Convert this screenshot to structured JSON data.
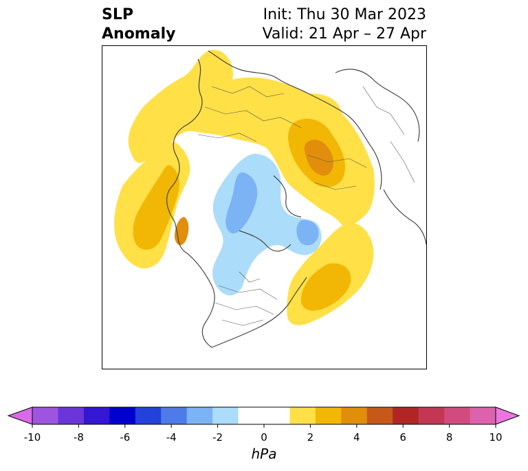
{
  "title": {
    "line1": "SLP",
    "line2": "Anomaly",
    "init": "Init: Thu 30 Mar 2023",
    "valid": "Valid: 21 Apr – 27 Apr"
  },
  "map": {
    "projection": "north-polar-stereographic",
    "field": "sea level pressure anomaly",
    "regions": [
      {
        "name": "north-atlantic-europe-high",
        "level": 2,
        "sign": "positive"
      },
      {
        "name": "scandinavia-russia-high-core",
        "level": 3,
        "sign": "positive"
      },
      {
        "name": "north-pacific-high",
        "level": 2,
        "sign": "positive"
      },
      {
        "name": "north-pacific-high-core",
        "level": 3,
        "sign": "positive"
      },
      {
        "name": "western-atlantic-high",
        "level": 2,
        "sign": "positive"
      },
      {
        "name": "arctic-low",
        "level": -2,
        "sign": "negative"
      },
      {
        "name": "baffin-low",
        "level": -2,
        "sign": "negative"
      }
    ]
  },
  "colorbar": {
    "unit": "hPa",
    "min": -10,
    "max": 10,
    "extend": "both",
    "ticks": [
      "-10",
      "-8",
      "-6",
      "-4",
      "-2",
      "0",
      "2",
      "4",
      "6",
      "8",
      "10"
    ],
    "colors": [
      "#9d55e0",
      "#6a36d9",
      "#3417d2",
      "#0000cd",
      "#2342da",
      "#4f7be8",
      "#7cb3f4",
      "#abdcfa",
      "#ffffff",
      "#ffffff",
      "#ffe047",
      "#f2b704",
      "#e08e0b",
      "#c5591a",
      "#b12525",
      "#c43754",
      "#d14b7e",
      "#dd62ac"
    ],
    "extend_colors": {
      "low": "#d86ae8",
      "high": "#eb76de"
    }
  }
}
